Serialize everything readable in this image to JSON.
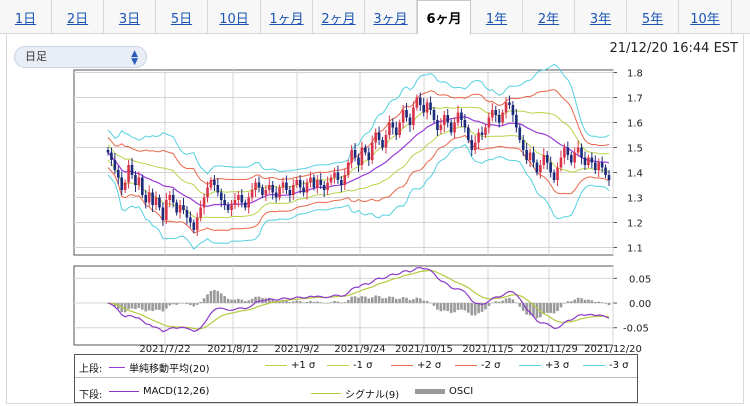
{
  "tabs": [
    {
      "label": "1日",
      "active": false
    },
    {
      "label": "2日",
      "active": false
    },
    {
      "label": "3日",
      "active": false
    },
    {
      "label": "5日",
      "active": false
    },
    {
      "label": "10日",
      "active": false
    },
    {
      "label": "1ヶ月",
      "active": false
    },
    {
      "label": "2ヶ月",
      "active": false
    },
    {
      "label": "3ヶ月",
      "active": false
    },
    {
      "label": "6ヶ月",
      "active": true
    },
    {
      "label": "1年",
      "active": false
    },
    {
      "label": "2年",
      "active": false
    },
    {
      "label": "3年",
      "active": false
    },
    {
      "label": "5年",
      "active": false
    },
    {
      "label": "10年",
      "active": false
    }
  ],
  "interval_select": {
    "value": "日足"
  },
  "timestamp": "21/12/20 16:44 EST",
  "colors": {
    "up": "#d9354a",
    "down": "#1c2a7a",
    "sma": "#9b3ad6",
    "sigma1": "#b8d44a",
    "sigma2": "#e8674a",
    "sigma3": "#55d0e0",
    "macd": "#8b3ac6",
    "signal": "#b8c840",
    "osci": "#9a9a9a"
  },
  "chart_data": {
    "type": "candlestick",
    "price_axis": {
      "ticks": [
        "1.8",
        "1.7",
        "1.6",
        "1.5",
        "1.4",
        "1.3",
        "1.2",
        "1.1"
      ],
      "min": 1.07,
      "max": 1.81
    },
    "osc_axis": {
      "ticks": [
        "0.05",
        "0.00",
        "-0.05"
      ],
      "min": -0.085,
      "max": 0.075
    },
    "x_labels": [
      "2021/7/22",
      "2021/8/12",
      "2021/9/2",
      "2021/9/24",
      "2021/10/15",
      "2021/11/5",
      "2021/11/29",
      "2021/12/20"
    ],
    "close": [
      1.48,
      1.45,
      1.41,
      1.38,
      1.33,
      1.36,
      1.43,
      1.39,
      1.35,
      1.38,
      1.31,
      1.28,
      1.32,
      1.27,
      1.3,
      1.26,
      1.21,
      1.29,
      1.31,
      1.28,
      1.24,
      1.27,
      1.25,
      1.22,
      1.2,
      1.17,
      1.22,
      1.26,
      1.3,
      1.34,
      1.37,
      1.35,
      1.32,
      1.29,
      1.27,
      1.25,
      1.27,
      1.29,
      1.31,
      1.28,
      1.26,
      1.3,
      1.33,
      1.36,
      1.34,
      1.31,
      1.33,
      1.35,
      1.32,
      1.3,
      1.34,
      1.36,
      1.33,
      1.31,
      1.35,
      1.37,
      1.34,
      1.32,
      1.36,
      1.38,
      1.34,
      1.37,
      1.35,
      1.33,
      1.36,
      1.38,
      1.4,
      1.37,
      1.35,
      1.39,
      1.44,
      1.49,
      1.46,
      1.43,
      1.5,
      1.48,
      1.45,
      1.52,
      1.56,
      1.53,
      1.5,
      1.55,
      1.6,
      1.58,
      1.55,
      1.6,
      1.65,
      1.62,
      1.59,
      1.66,
      1.7,
      1.67,
      1.64,
      1.68,
      1.65,
      1.61,
      1.57,
      1.59,
      1.63,
      1.6,
      1.56,
      1.6,
      1.64,
      1.61,
      1.58,
      1.53,
      1.49,
      1.52,
      1.56,
      1.55,
      1.58,
      1.62,
      1.65,
      1.63,
      1.6,
      1.64,
      1.68,
      1.67,
      1.63,
      1.58,
      1.53,
      1.49,
      1.45,
      1.48,
      1.44,
      1.4,
      1.43,
      1.47,
      1.44,
      1.4,
      1.37,
      1.42,
      1.46,
      1.5,
      1.47,
      1.44,
      1.48,
      1.5,
      1.46,
      1.43,
      1.46,
      1.44,
      1.41,
      1.44,
      1.42,
      1.39,
      1.37
    ]
  },
  "legend": {
    "upper_label": "上段:",
    "lower_label": "下段:",
    "upper_items": [
      {
        "label": "単純移動平均(20)",
        "color": "#9b3ad6"
      },
      {
        "label": "+1 σ",
        "color": "#b8d44a"
      },
      {
        "label": "-1 σ",
        "color": "#b8d44a"
      },
      {
        "label": "+2 σ",
        "color": "#e8674a"
      },
      {
        "label": "-2 σ",
        "color": "#e8674a"
      },
      {
        "label": "+3 σ",
        "color": "#55d0e0"
      },
      {
        "label": "-3 σ",
        "color": "#55d0e0"
      }
    ],
    "lower_items": [
      {
        "label": "MACD(12,26)",
        "color": "#8b3ac6"
      },
      {
        "label": "シグナル(9)",
        "color": "#b8c840"
      },
      {
        "label": "OSCI",
        "color": "#9a9a9a"
      }
    ]
  }
}
